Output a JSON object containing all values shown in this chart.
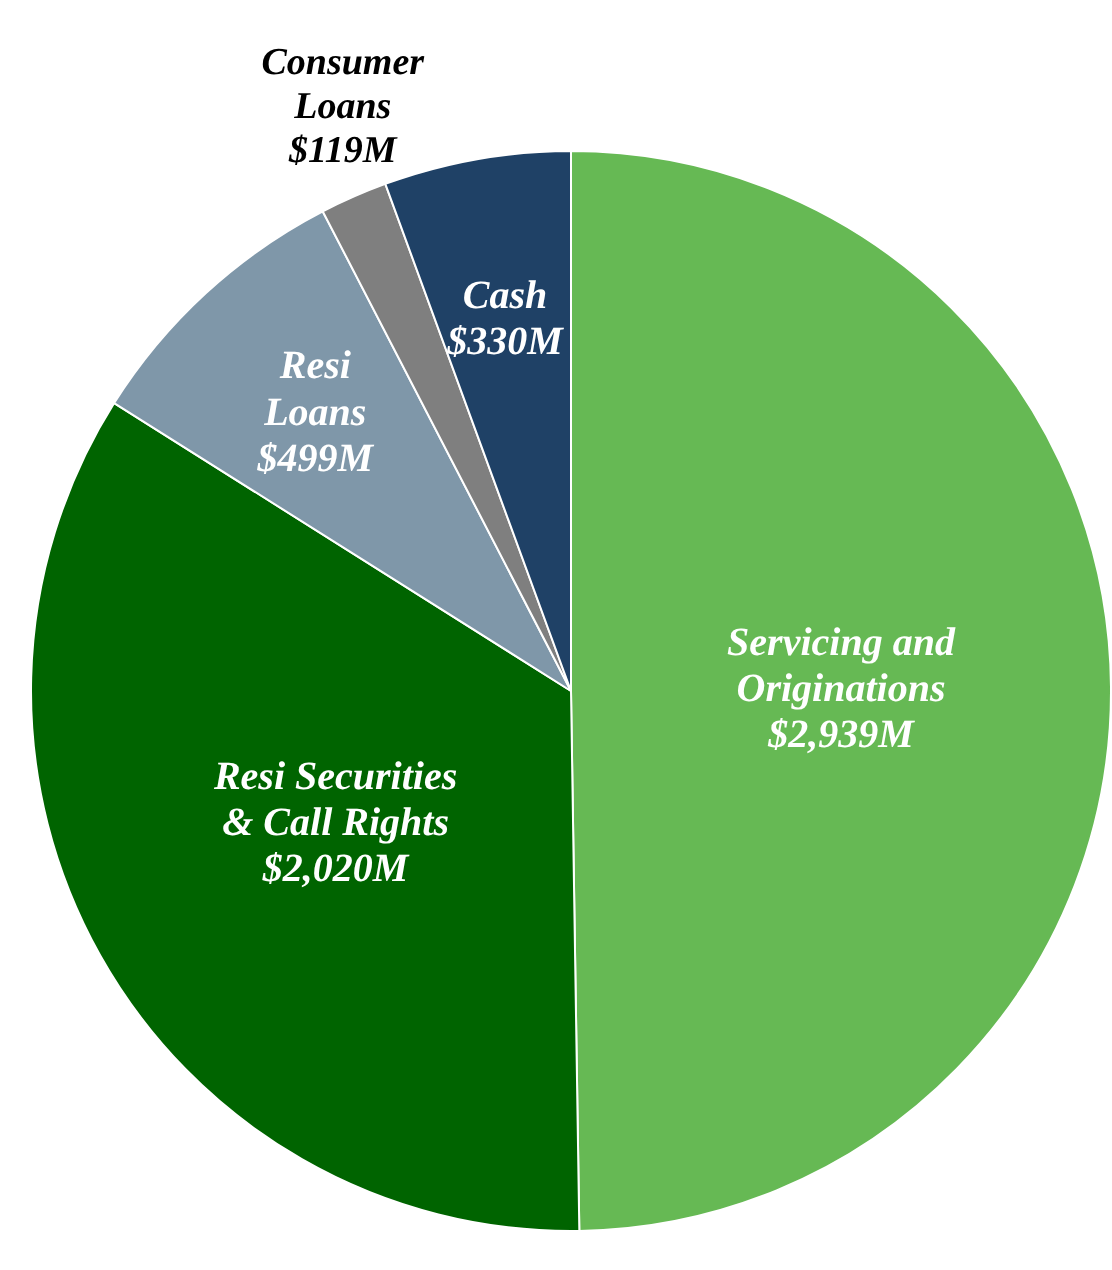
{
  "chart_data": {
    "type": "pie",
    "categories": [
      "Servicing and Originations",
      "Resi Securities & Call Rights",
      "Resi Loans",
      "Consumer Loans",
      "Cash"
    ],
    "values": [
      2939,
      2020,
      499,
      119,
      330
    ],
    "colors": [
      "#66b954",
      "#006400",
      "#7f97a9",
      "#7f7f7f",
      "#1f4166"
    ],
    "value_labels": [
      "$2,939M",
      "$2,020M",
      "$499M",
      "$119M",
      "$330M"
    ]
  }
}
